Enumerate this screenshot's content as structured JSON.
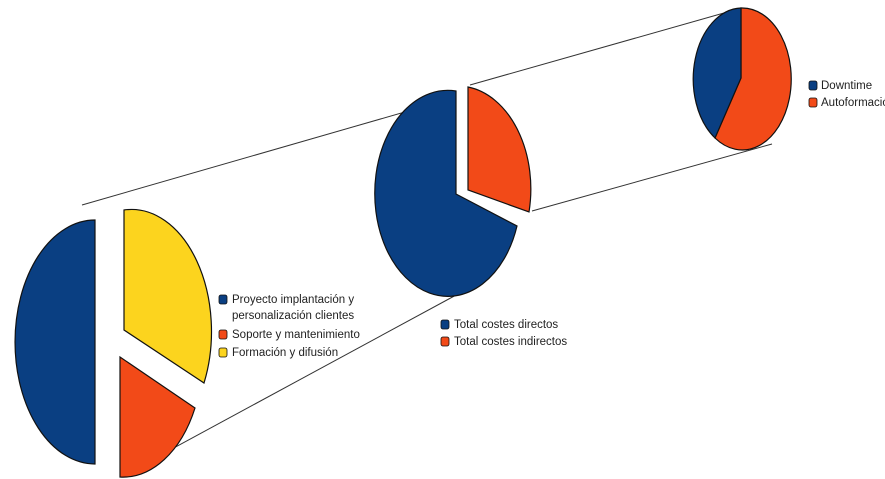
{
  "chart_data": [
    {
      "type": "pie",
      "series": [
        {
          "name": "Proyecto implantación y personalización clientes",
          "value": 50
        },
        {
          "name": "Soporte y mantenimiento",
          "value": 18
        },
        {
          "name": "Formación y difusión",
          "value": 32
        }
      ],
      "legend": {
        "placement": "right",
        "items": [
          {
            "lines": [
              "Proyecto implantación y",
              "personalización clientes"
            ],
            "color": "#0a3f82"
          },
          {
            "lines": [
              "Soporte y mantenimiento"
            ],
            "color": "#f24a18"
          },
          {
            "lines": [
              "Formación y difusión"
            ],
            "color": "#fcd41e"
          }
        ]
      }
    },
    {
      "type": "pie",
      "series": [
        {
          "name": "Total costes directos",
          "value": 70
        },
        {
          "name": "Total costes indirectos",
          "value": 30
        }
      ],
      "legend": {
        "placement": "bottom",
        "items": [
          {
            "lines": [
              "Total costes directos"
            ],
            "color": "#0a3f82"
          },
          {
            "lines": [
              "Total costes indirectos"
            ],
            "color": "#f24a18"
          }
        ]
      }
    },
    {
      "type": "pie",
      "series": [
        {
          "name": "Downtime",
          "value": 40
        },
        {
          "name": "Autoformación",
          "value": 60
        }
      ],
      "legend": {
        "placement": "right",
        "items": [
          {
            "lines": [
              "Downtime"
            ],
            "color": "#0a3f82"
          },
          {
            "lines": [
              "Autoformación"
            ],
            "color": "#f24a18"
          }
        ]
      }
    }
  ]
}
